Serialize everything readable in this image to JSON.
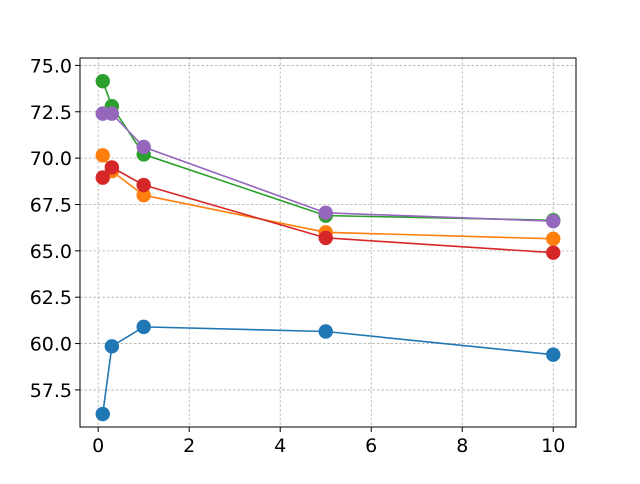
{
  "chart_data": {
    "type": "line",
    "title": "",
    "xlabel": "",
    "ylabel": "",
    "x": [
      0.1,
      0.3,
      1,
      5,
      10
    ],
    "xlim": [
      -0.4,
      10.5
    ],
    "ylim": [
      55.5,
      75.4
    ],
    "x_ticks": [
      0,
      2,
      4,
      6,
      8,
      10
    ],
    "x_tick_labels": [
      "0",
      "2",
      "4",
      "6",
      "8",
      "10"
    ],
    "y_ticks": [
      57.5,
      60.0,
      62.5,
      65.0,
      67.5,
      70.0,
      72.5,
      75.0
    ],
    "y_tick_labels": [
      "57.5",
      "60.0",
      "62.5",
      "65.0",
      "67.5",
      "70.0",
      "72.5",
      "75.0"
    ],
    "grid": true,
    "series": [
      {
        "color": "#1f77b4",
        "values": [
          56.2,
          59.85,
          60.9,
          60.65,
          59.4
        ]
      },
      {
        "color": "#ff7f0e",
        "values": [
          70.15,
          69.3,
          68.0,
          66.0,
          65.65
        ]
      },
      {
        "color": "#2ca02c",
        "values": [
          74.15,
          72.8,
          70.2,
          66.9,
          66.65
        ]
      },
      {
        "color": "#d62728",
        "values": [
          68.95,
          69.5,
          68.55,
          65.7,
          64.9
        ]
      },
      {
        "color": "#9467bd",
        "values": [
          72.4,
          72.4,
          70.6,
          67.05,
          66.6
        ]
      }
    ]
  }
}
